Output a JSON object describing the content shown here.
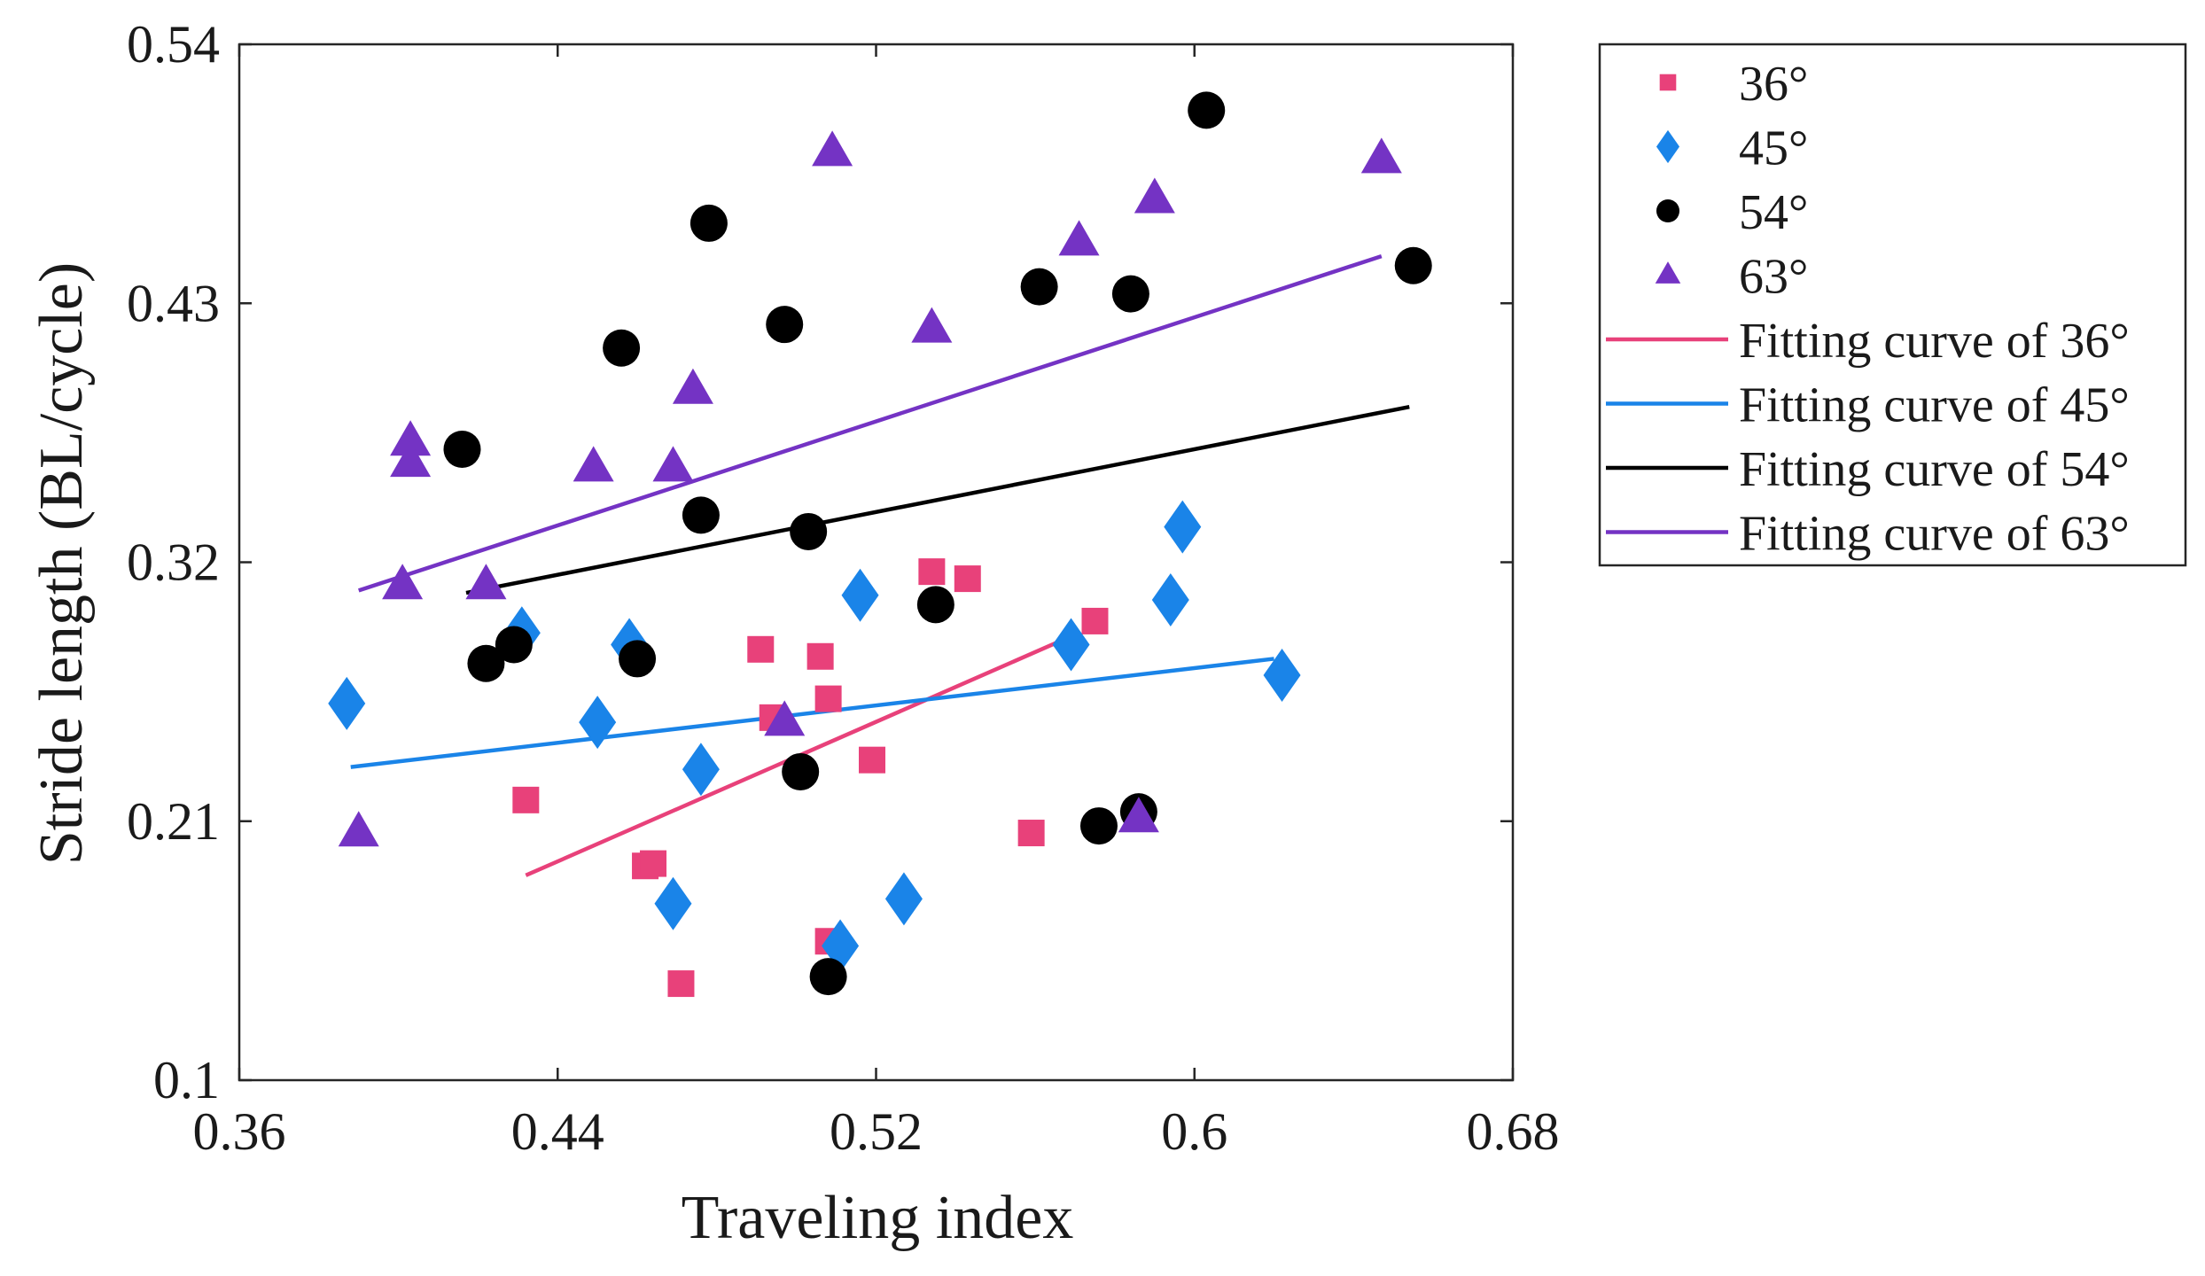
{
  "chart_data": {
    "type": "scatter",
    "title": "",
    "xlabel": "Traveling index",
    "ylabel": "Stride length (BL/cycle)",
    "xlim": [
      0.36,
      0.68
    ],
    "ylim": [
      0.1,
      0.54
    ],
    "xticks": [
      0.36,
      0.44,
      0.52,
      0.6,
      0.68
    ],
    "yticks": [
      0.1,
      0.21,
      0.32,
      0.43,
      0.54
    ],
    "xtick_labels": [
      "0.36",
      "0.44",
      "0.52",
      "0.6",
      "0.68"
    ],
    "ytick_labels": [
      "0.1",
      "0.21",
      "0.32",
      "0.43",
      "0.54"
    ],
    "grid": false,
    "legend_position": "outside-right-top",
    "series": [
      {
        "name": "36°",
        "marker": "square",
        "color": "#e8417a",
        "points": [
          [
            0.432,
            0.219
          ],
          [
            0.462,
            0.191
          ],
          [
            0.464,
            0.192
          ],
          [
            0.471,
            0.141
          ],
          [
            0.491,
            0.283
          ],
          [
            0.494,
            0.254
          ],
          [
            0.506,
            0.28
          ],
          [
            0.508,
            0.262
          ],
          [
            0.508,
            0.159
          ],
          [
            0.519,
            0.236
          ],
          [
            0.534,
            0.316
          ],
          [
            0.543,
            0.313
          ],
          [
            0.559,
            0.205
          ],
          [
            0.575,
            0.295
          ]
        ]
      },
      {
        "name": "45°",
        "marker": "diamond",
        "color": "#1a84e8",
        "points": [
          [
            0.387,
            0.26
          ],
          [
            0.431,
            0.29
          ],
          [
            0.45,
            0.252
          ],
          [
            0.458,
            0.285
          ],
          [
            0.469,
            0.175
          ],
          [
            0.476,
            0.232
          ],
          [
            0.511,
            0.157
          ],
          [
            0.516,
            0.306
          ],
          [
            0.527,
            0.177
          ],
          [
            0.569,
            0.285
          ],
          [
            0.594,
            0.304
          ],
          [
            0.597,
            0.335
          ],
          [
            0.622,
            0.272
          ]
        ]
      },
      {
        "name": "54°",
        "marker": "circle",
        "color": "#000000",
        "points": [
          [
            0.416,
            0.368
          ],
          [
            0.422,
            0.277
          ],
          [
            0.429,
            0.285
          ],
          [
            0.456,
            0.411
          ],
          [
            0.46,
            0.279
          ],
          [
            0.476,
            0.34
          ],
          [
            0.478,
            0.464
          ],
          [
            0.497,
            0.421
          ],
          [
            0.501,
            0.231
          ],
          [
            0.503,
            0.333
          ],
          [
            0.508,
            0.144
          ],
          [
            0.535,
            0.302
          ],
          [
            0.561,
            0.437
          ],
          [
            0.576,
            0.208
          ],
          [
            0.584,
            0.434
          ],
          [
            0.586,
            0.214
          ],
          [
            0.603,
            0.512
          ],
          [
            0.655,
            0.446
          ]
        ]
      },
      {
        "name": "63°",
        "marker": "triangle",
        "color": "#7433c4",
        "points": [
          [
            0.39,
            0.205
          ],
          [
            0.401,
            0.31
          ],
          [
            0.403,
            0.371
          ],
          [
            0.403,
            0.362
          ],
          [
            0.422,
            0.31
          ],
          [
            0.449,
            0.36
          ],
          [
            0.469,
            0.36
          ],
          [
            0.474,
            0.393
          ],
          [
            0.497,
            0.252
          ],
          [
            0.509,
            0.494
          ],
          [
            0.534,
            0.419
          ],
          [
            0.571,
            0.456
          ],
          [
            0.586,
            0.211
          ],
          [
            0.59,
            0.474
          ],
          [
            0.647,
            0.491
          ]
        ]
      }
    ],
    "fit_lines": [
      {
        "name": "Fitting curve of 36°",
        "color": "#e8417a",
        "x": [
          0.432,
          0.571
        ],
        "y": [
          0.187,
          0.29
        ]
      },
      {
        "name": "Fitting curve of 45°",
        "color": "#1a84e8",
        "x": [
          0.388,
          0.62
        ],
        "y": [
          0.233,
          0.279
        ]
      },
      {
        "name": "Fitting curve of 54°",
        "color": "#000000",
        "x": [
          0.417,
          0.654
        ],
        "y": [
          0.307,
          0.386
        ]
      },
      {
        "name": "Fitting curve of 63°",
        "color": "#7433c4",
        "x": [
          0.39,
          0.647
        ],
        "y": [
          0.308,
          0.45
        ]
      }
    ]
  }
}
